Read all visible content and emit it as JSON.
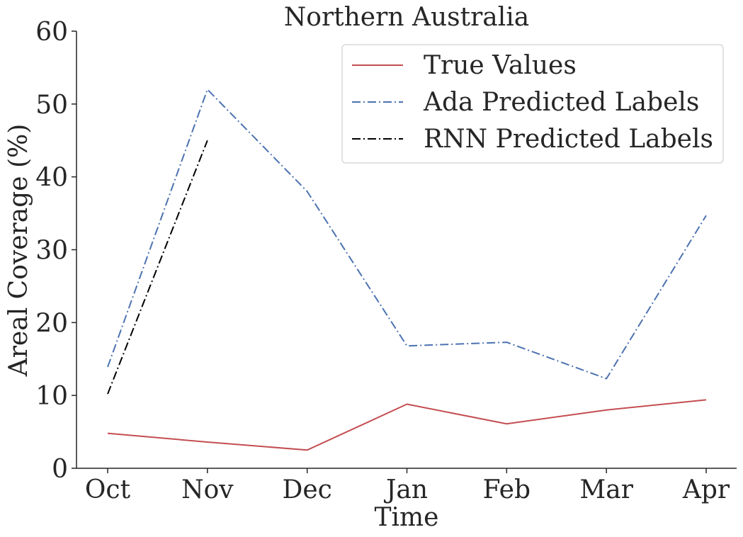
{
  "chart_data": {
    "type": "line",
    "title": "Northern Australia",
    "xlabel": "Time",
    "ylabel": "Areal Coverage (%)",
    "categories": [
      "Oct",
      "Nov",
      "Dec",
      "Jan",
      "Feb",
      "Mar",
      "Apr"
    ],
    "x": [
      0,
      1,
      2,
      3,
      4,
      5,
      6
    ],
    "ylim": [
      0,
      60
    ],
    "yticks": [
      0,
      10,
      20,
      30,
      40,
      50,
      60
    ],
    "grid": false,
    "legend_position": "top-right",
    "series": [
      {
        "name": "True Values",
        "color": "#c44e52",
        "dash": "solid",
        "x": [
          0,
          1,
          2,
          3,
          4,
          5,
          6
        ],
        "values": [
          4.8,
          3.6,
          2.5,
          8.8,
          6.1,
          8.0,
          9.4
        ]
      },
      {
        "name": "Ada Predicted Labels",
        "color": "#4c72b0",
        "dash": "dashdot",
        "x": [
          0,
          1,
          2,
          3,
          4,
          5,
          6
        ],
        "values": [
          13.9,
          52.0,
          38.0,
          16.8,
          17.3,
          12.3,
          34.7
        ]
      },
      {
        "name": "RNN Predicted Labels",
        "color": "#000000",
        "dash": "dashdot",
        "x": [
          0,
          1
        ],
        "values": [
          10.2,
          45.0
        ],
        "extends_beyond_ylim": true
      }
    ]
  }
}
